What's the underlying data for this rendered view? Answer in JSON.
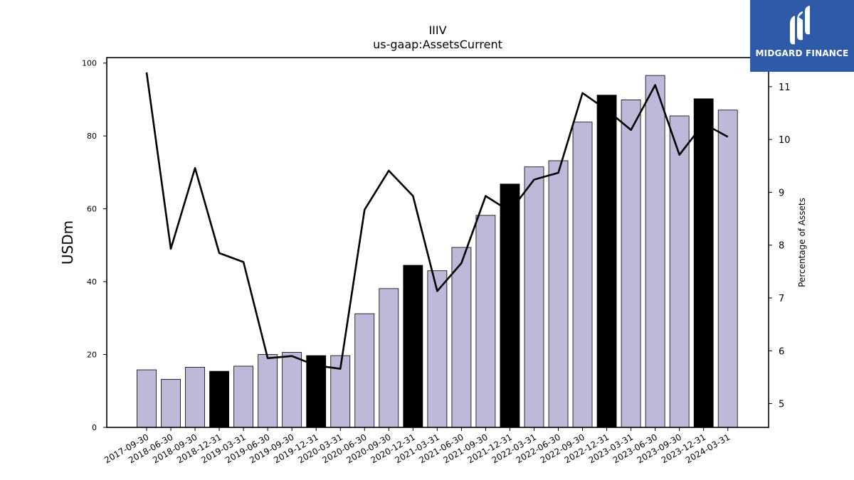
{
  "chart_data": {
    "type": "bar+line",
    "title": "IIIV",
    "subtitle": "us-gaap:AssetsCurrent",
    "ylabel": "USDm",
    "y2label": "Percentage of Assets",
    "ylim": [
      0,
      101.5
    ],
    "y2lim": [
      4.55,
      11.55
    ],
    "yticks": [
      0,
      20,
      40,
      60,
      80,
      100
    ],
    "y2ticks": [
      5,
      6,
      7,
      8,
      9,
      10,
      11
    ],
    "categories": [
      "2017-09-30",
      "2018-06-30",
      "2018-09-30",
      "2018-12-31",
      "2019-03-31",
      "2019-06-30",
      "2019-09-30",
      "2019-12-31",
      "2020-03-31",
      "2020-06-30",
      "2020-09-30",
      "2020-12-31",
      "2021-03-31",
      "2021-06-30",
      "2021-09-30",
      "2021-12-31",
      "2022-03-31",
      "2022-06-30",
      "2022-09-30",
      "2022-12-31",
      "2023-03-31",
      "2023-06-30",
      "2023-09-30",
      "2023-12-31",
      "2024-03-31"
    ],
    "bars": {
      "values": [
        15.8,
        13.2,
        16.5,
        15.4,
        16.8,
        20.0,
        20.6,
        19.7,
        19.7,
        31.2,
        38.1,
        44.5,
        43.0,
        49.4,
        58.2,
        66.8,
        71.5,
        73.2,
        83.8,
        91.2,
        89.9,
        96.6,
        85.5,
        90.2,
        87.1
      ],
      "highlight": [
        false,
        false,
        false,
        true,
        false,
        false,
        false,
        true,
        false,
        false,
        false,
        true,
        false,
        false,
        false,
        true,
        false,
        false,
        false,
        true,
        false,
        false,
        false,
        true,
        false
      ],
      "color": "#bcb9d9",
      "highlight_color": "#000000"
    },
    "line": {
      "values": [
        11.27,
        7.93,
        9.46,
        7.85,
        7.68,
        5.86,
        5.9,
        5.72,
        5.66,
        8.67,
        9.41,
        8.93,
        7.13,
        7.66,
        8.93,
        8.64,
        9.24,
        9.37,
        10.88,
        10.56,
        10.18,
        11.03,
        9.71,
        10.3,
        10.05
      ],
      "color": "#000000",
      "axis": "right"
    },
    "grid": false
  },
  "logo": {
    "text": "MIDGARD FINANCE",
    "background": "#2f5aa8",
    "icon": "midgard-logo-icon"
  }
}
